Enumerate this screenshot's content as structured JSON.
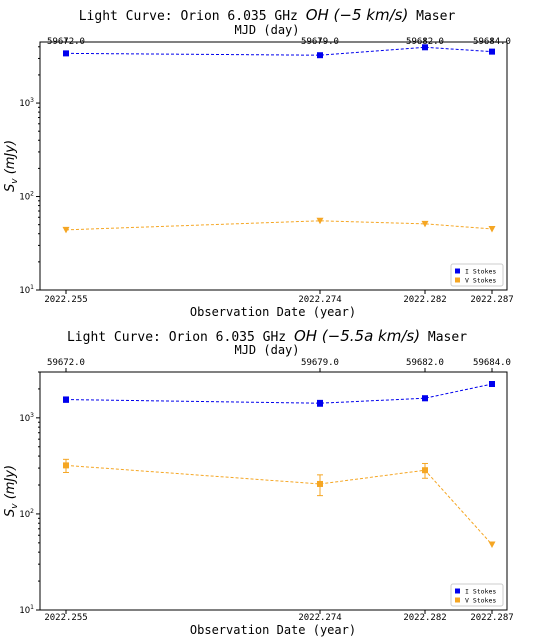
{
  "chart_data": [
    {
      "type": "line",
      "title_prefix": "Light Curve: Orion 6.035 GHz ",
      "title_math": "OH (−5 km/s)",
      "title_suffix": " Maser",
      "top_axis_label": "MJD (day)",
      "xlabel": "Observation Date (year)",
      "ylabel": "S_v (mJy)",
      "yscale": "log",
      "ylim": [
        10,
        4500
      ],
      "categories": [
        "2022.255",
        "2022.274",
        "2022.282",
        "2022.287"
      ],
      "x": [
        2022.255,
        2022.274,
        2022.282,
        2022.287
      ],
      "top_ticks": [
        "59672.0",
        "59679.0",
        "59682.0",
        "59684.0"
      ],
      "y_tick_labels": [
        "10^1",
        "10^2",
        "10^3"
      ],
      "legend_position": "lower-right",
      "series": [
        {
          "name": "I Stokes",
          "color": "#0000ee",
          "marker": "square",
          "values": [
            3400,
            3250,
            3950,
            3550
          ],
          "errors": [
            150,
            150,
            200,
            150
          ]
        },
        {
          "name": "V Stokes",
          "color": "#f5a623",
          "marker": "triangle-down",
          "values": [
            44,
            55,
            51,
            45
          ],
          "errors": [
            0,
            0,
            0,
            0
          ]
        }
      ]
    },
    {
      "type": "line",
      "title_prefix": "Light Curve: Orion 6.035 GHz ",
      "title_math": "OH (−5.5a km/s)",
      "title_suffix": " Maser",
      "top_axis_label": "MJD (day)",
      "xlabel": "Observation Date (year)",
      "ylabel": "S_v (mJy)",
      "yscale": "log",
      "ylim": [
        10,
        3000
      ],
      "categories": [
        "2022.255",
        "2022.274",
        "2022.282",
        "2022.287"
      ],
      "x": [
        2022.255,
        2022.274,
        2022.282,
        2022.287
      ],
      "top_ticks": [
        "59672.0",
        "59679.0",
        "59682.0",
        "59684.0"
      ],
      "y_tick_labels": [
        "10^1",
        "10^2",
        "10^3"
      ],
      "legend_position": "lower-right",
      "series": [
        {
          "name": "I Stokes",
          "color": "#0000ee",
          "marker": "square",
          "values": [
            1550,
            1420,
            1600,
            2250
          ],
          "errors": [
            100,
            100,
            90,
            120
          ]
        },
        {
          "name": "V Stokes",
          "color": "#f5a623",
          "marker": "square-last-triangle",
          "values": [
            320,
            205,
            285,
            48
          ],
          "errors": [
            50,
            50,
            50,
            0
          ]
        }
      ]
    }
  ]
}
